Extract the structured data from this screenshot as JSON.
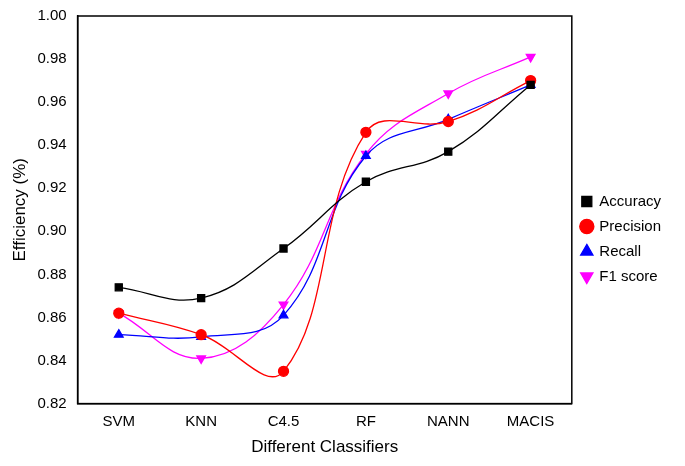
{
  "chart_data": {
    "type": "line",
    "x_label": "Different Classifiers",
    "y_label": "Efficiency (%)",
    "categories": [
      "SVM",
      "KNN",
      "C4.5",
      "RF",
      "NANN",
      "MACIS"
    ],
    "ylim": [
      0.82,
      1.0
    ],
    "yticks": [
      0.82,
      0.84,
      0.86,
      0.88,
      {
        "value": 0.9,
        "label": "0.90"
      },
      0.92,
      0.94,
      0.96,
      0.98,
      {
        "value": 1.0,
        "label": "1.00"
      }
    ],
    "grid": false,
    "legend": "right",
    "series": [
      {
        "name": "Accuracy",
        "color": "#000000",
        "marker": "square",
        "line_style": "smooth",
        "values": [
          0.874,
          0.869,
          0.892,
          0.923,
          0.937,
          0.968
        ]
      },
      {
        "name": "Precision",
        "color": "#ff0000",
        "marker": "circle",
        "line_style": "smooth",
        "values": [
          0.862,
          0.852,
          0.835,
          0.946,
          0.951,
          0.97
        ]
      },
      {
        "name": "Recall",
        "color": "#0000ff",
        "marker": "triangle",
        "line_style": "smooth",
        "values": [
          0.852,
          0.851,
          0.861,
          0.935,
          0.952,
          0.968
        ]
      },
      {
        "name": "F1 score",
        "color": "#ff00ff",
        "marker": "triangle_down",
        "line_style": "smooth",
        "values": [
          0.862,
          0.841,
          0.866,
          0.936,
          0.964,
          0.981
        ]
      }
    ]
  }
}
